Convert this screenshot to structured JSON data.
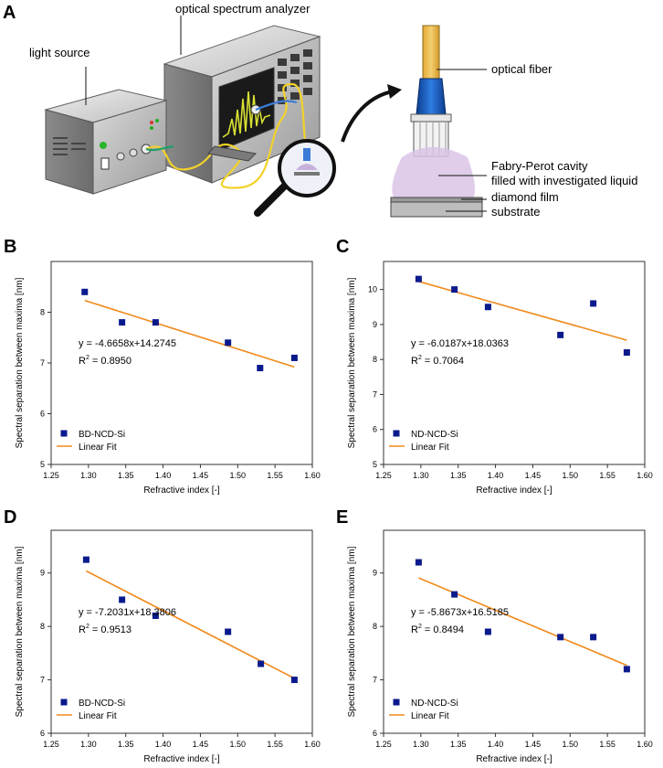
{
  "panel_a": {
    "letter": "A",
    "labels": {
      "osa": "optical spectrum analyzer",
      "light_source": "light source",
      "optical_fiber": "optical fiber",
      "cavity_line1": "Fabry-Perot cavity",
      "cavity_line2": "filled with investigated liquid",
      "diamond_film": "diamond film",
      "substrate": "substrate"
    },
    "colors": {
      "fiber": "#e8c800",
      "liquid": "#d9c4e6",
      "screen": "#1a1a1a",
      "trace": "#d7e033"
    }
  },
  "chart_data": [
    {
      "panel": "B",
      "type": "scatter",
      "xlabel": "Refractive index [-]",
      "ylabel": "Spectral separation between maxima [nm]",
      "xlim": [
        1.25,
        1.6
      ],
      "ylim": [
        5,
        9
      ],
      "xticks": [
        "1.25",
        "1.30",
        "1.35",
        "1.40",
        "1.45",
        "1.50",
        "1.55",
        "1.60"
      ],
      "yticks": [
        "5",
        "6",
        "7",
        "8"
      ],
      "points": [
        {
          "x": 1.295,
          "y": 8.4
        },
        {
          "x": 1.345,
          "y": 7.8
        },
        {
          "x": 1.39,
          "y": 7.8
        },
        {
          "x": 1.487,
          "y": 7.4
        },
        {
          "x": 1.53,
          "y": 6.9
        },
        {
          "x": 1.576,
          "y": 7.1
        }
      ],
      "fit": {
        "slope": -4.6658,
        "intercept": 14.2745
      },
      "eq": "y = -4.6658x+14.2745",
      "r2_value": " = 0.8950",
      "legend": {
        "series": "BD-NCD-Si",
        "fit": "Linear Fit"
      }
    },
    {
      "panel": "C",
      "type": "scatter",
      "xlabel": "Refractive index [-]",
      "ylabel": "Spectral separation between maxima [nm]",
      "xlim": [
        1.25,
        1.6
      ],
      "ylim": [
        5,
        10.8
      ],
      "xticks": [
        "1.25",
        "1.30",
        "1.35",
        "1.40",
        "1.45",
        "1.50",
        "1.55",
        "1.60"
      ],
      "yticks": [
        "5",
        "6",
        "7",
        "8",
        "9",
        "10"
      ],
      "points": [
        {
          "x": 1.297,
          "y": 10.3
        },
        {
          "x": 1.345,
          "y": 10.0
        },
        {
          "x": 1.39,
          "y": 9.5
        },
        {
          "x": 1.487,
          "y": 8.7
        },
        {
          "x": 1.531,
          "y": 9.6
        },
        {
          "x": 1.576,
          "y": 8.2
        }
      ],
      "fit": {
        "slope": -6.0187,
        "intercept": 18.0363
      },
      "eq": "y = -6.0187x+18.0363",
      "r2_value": " = 0.7064",
      "legend": {
        "series": "ND-NCD-Si",
        "fit": "Linear Fit"
      }
    },
    {
      "panel": "D",
      "type": "scatter",
      "xlabel": "Refractive index [-]",
      "ylabel": "Spectral separation between maxima [nm]",
      "xlim": [
        1.25,
        1.6
      ],
      "ylim": [
        6,
        9.8
      ],
      "xticks": [
        "1.25",
        "1.30",
        "1.35",
        "1.40",
        "1.45",
        "1.50",
        "1.55",
        "1.60"
      ],
      "yticks": [
        "6",
        "7",
        "8",
        "9"
      ],
      "points": [
        {
          "x": 1.297,
          "y": 9.25
        },
        {
          "x": 1.345,
          "y": 8.5
        },
        {
          "x": 1.39,
          "y": 8.2
        },
        {
          "x": 1.487,
          "y": 7.9
        },
        {
          "x": 1.531,
          "y": 7.3
        },
        {
          "x": 1.576,
          "y": 7.0
        }
      ],
      "fit": {
        "slope": -7.2031,
        "intercept": 18.3806
      },
      "eq": "y = -7.2031x+18.3806",
      "r2_value": " = 0.9513",
      "legend": {
        "series": "BD-NCD-Si",
        "fit": "Linear Fit"
      }
    },
    {
      "panel": "E",
      "type": "scatter",
      "xlabel": "Refractive index [-]",
      "ylabel": "Spectral separation between maxima [nm]",
      "xlim": [
        1.25,
        1.6
      ],
      "ylim": [
        6,
        9.8
      ],
      "xticks": [
        "1.25",
        "1.30",
        "1.35",
        "1.40",
        "1.45",
        "1.50",
        "1.55",
        "1.60"
      ],
      "yticks": [
        "6",
        "7",
        "8",
        "9"
      ],
      "points": [
        {
          "x": 1.297,
          "y": 9.2
        },
        {
          "x": 1.345,
          "y": 8.6
        },
        {
          "x": 1.39,
          "y": 7.9
        },
        {
          "x": 1.487,
          "y": 7.8
        },
        {
          "x": 1.531,
          "y": 7.8
        },
        {
          "x": 1.576,
          "y": 7.2
        }
      ],
      "fit": {
        "slope": -5.8673,
        "intercept": 16.5185
      },
      "eq": "y = -5.8673x+16.5185",
      "r2_value": " = 0.8494",
      "legend": {
        "series": "ND-NCD-Si",
        "fit": "Linear Fit"
      }
    }
  ],
  "colors": {
    "marker": "#0a1a8c",
    "fit": "#f08a1c",
    "axis": "#333333"
  }
}
